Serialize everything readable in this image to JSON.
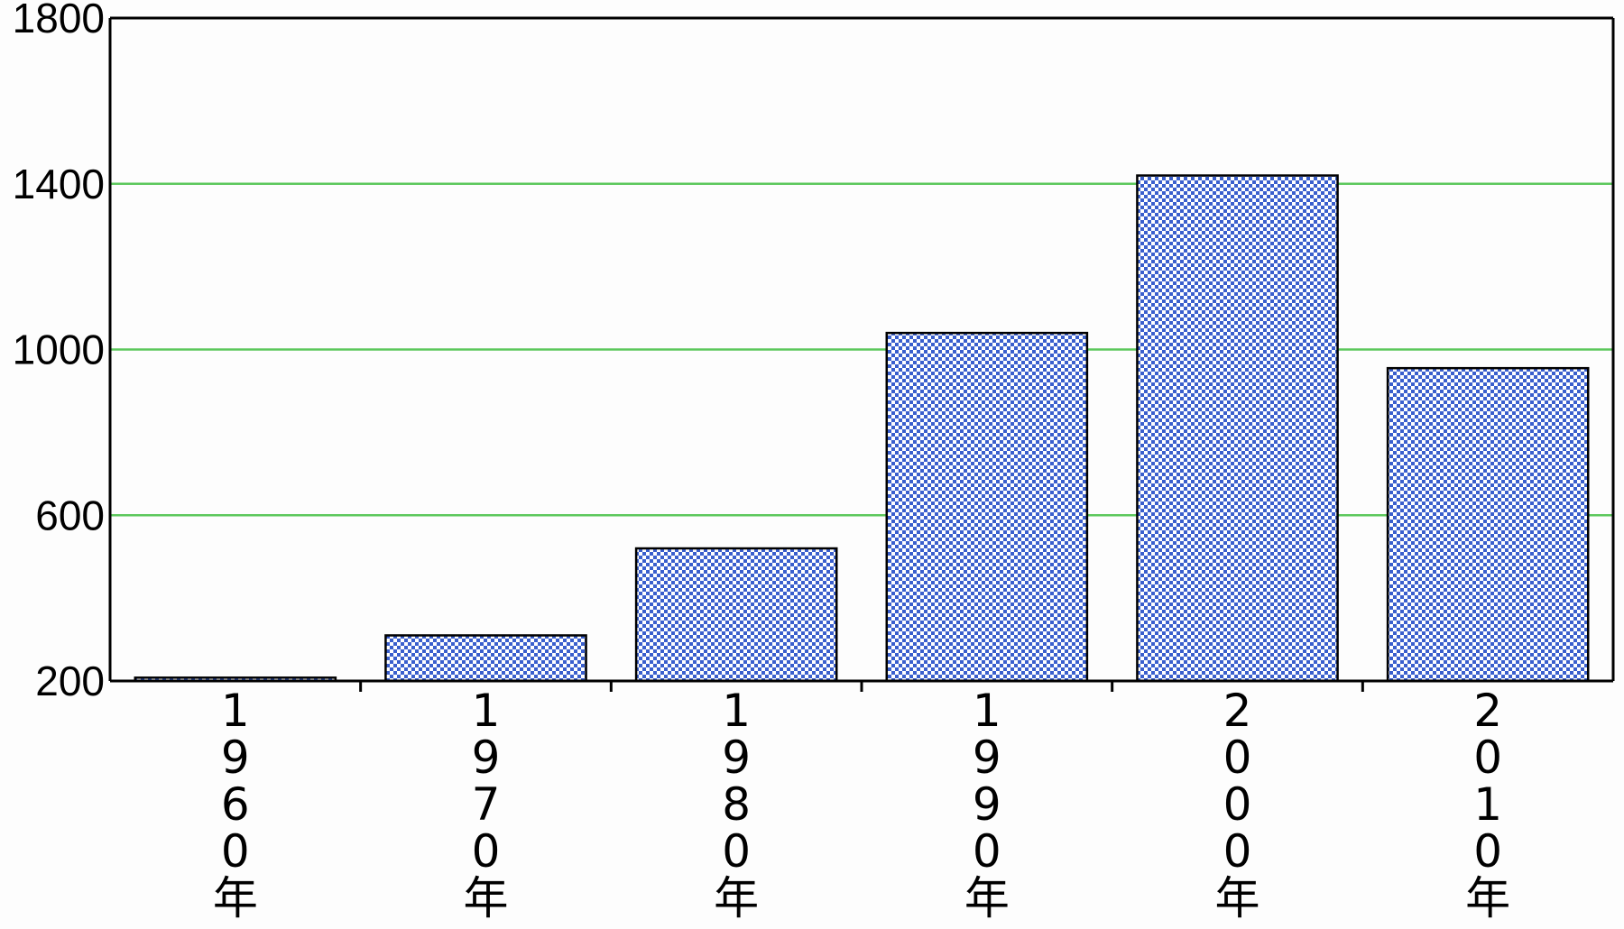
{
  "chart_data": {
    "type": "bar",
    "categories": [
      "1960年",
      "1970年",
      "1980年",
      "1990年",
      "2000年",
      "2010年"
    ],
    "values": [
      208,
      310,
      520,
      1040,
      1420,
      955
    ],
    "title": "",
    "xlabel": "",
    "ylabel": "",
    "ylim": [
      200,
      1800
    ],
    "yticks": [
      200,
      600,
      1000,
      1400,
      1800
    ],
    "gridlines": [
      600,
      1000,
      1400
    ],
    "grid": true,
    "legend": "none",
    "colors": {
      "bar_fill": "#3a5fcd",
      "bar_pattern_light": "#ffffff",
      "bar_edge": "#000000",
      "grid": "#5cc85c",
      "axis": "#000000"
    }
  }
}
